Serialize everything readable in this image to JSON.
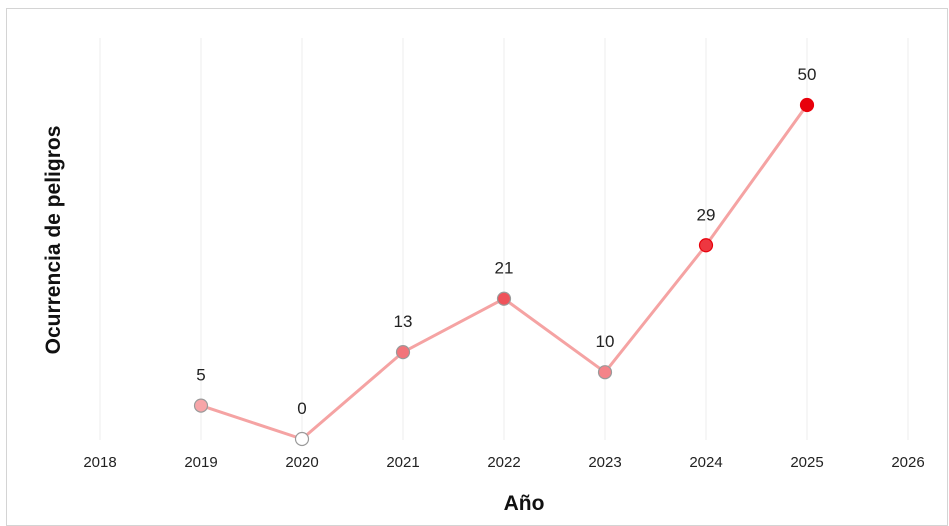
{
  "chart_data": {
    "type": "line",
    "xlabel": "Año",
    "ylabel": "Ocurrencia de peligros",
    "xlim": [
      2018,
      2026
    ],
    "ylim": [
      0,
      50
    ],
    "x_ticks": [
      "2018",
      "2019",
      "2020",
      "2021",
      "2022",
      "2023",
      "2024",
      "2025",
      "2026"
    ],
    "grid": "vertical",
    "series": [
      {
        "x": [
          2019,
          2020,
          2021,
          2022,
          2023,
          2024,
          2025
        ],
        "values": [
          5,
          0,
          13,
          21,
          10,
          29,
          50
        ]
      }
    ],
    "colors": {
      "line": "#f5a3a3",
      "marker_high": "#e8000b",
      "marker_low": "#ffffff",
      "marker_stroke": "#9a9a9a",
      "grid": "#ececec"
    }
  }
}
